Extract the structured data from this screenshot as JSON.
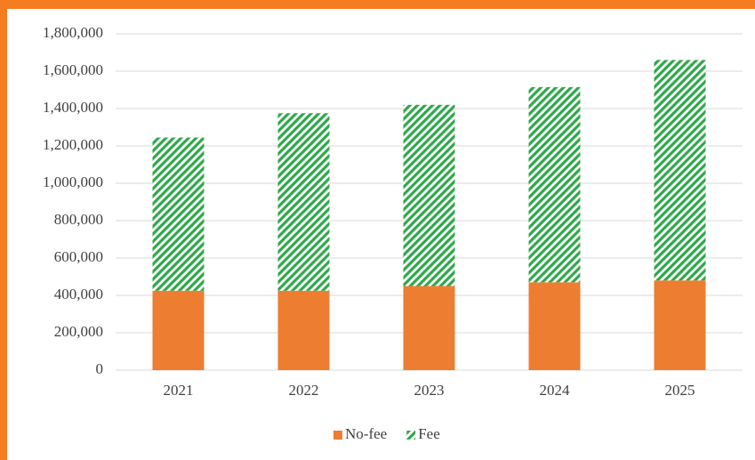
{
  "chart_data": {
    "type": "stacked_bar",
    "categories": [
      "2021",
      "2022",
      "2023",
      "2024",
      "2025"
    ],
    "series": [
      {
        "name": "No-fee",
        "color": "#ed7d31",
        "values": [
          425000,
          425000,
          450000,
          470000,
          480000
        ]
      },
      {
        "name": "Fee",
        "color": "#2ea84a",
        "values": [
          820000,
          950000,
          970000,
          1045000,
          1180000
        ]
      }
    ],
    "ylim": [
      0,
      1800000
    ],
    "yticks": [
      0,
      {
        "value": 200000,
        "label": "200,000"
      },
      {
        "value": 400000,
        "label": "400,000"
      },
      {
        "value": 600000,
        "label": "600,000"
      },
      {
        "value": 800000,
        "label": "800,000"
      },
      {
        "value": 1000000,
        "label": "1,000,000"
      },
      {
        "value": 1200000,
        "label": "1,200,000"
      },
      {
        "value": 1400000,
        "label": "1,400,000"
      },
      {
        "value": 1600000,
        "label": "1,600,000"
      },
      {
        "value": 1800000,
        "label": "1,800,000"
      }
    ],
    "grid": true,
    "legend": "bottom"
  }
}
